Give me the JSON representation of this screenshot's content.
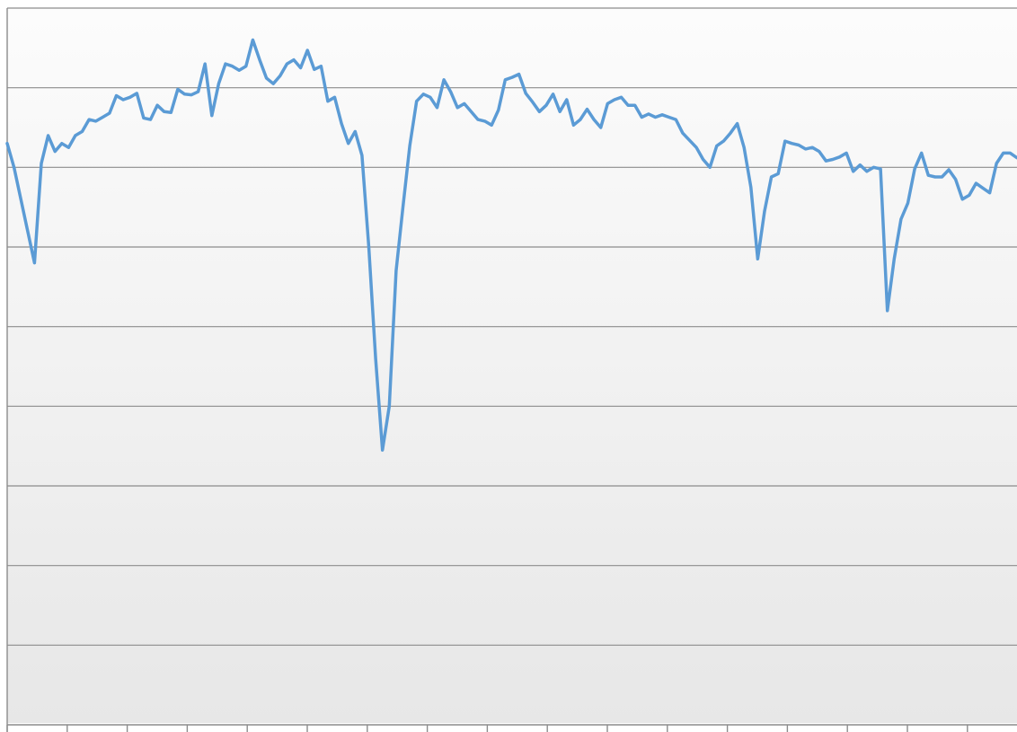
{
  "chart_data": {
    "type": "line",
    "title": "",
    "xlabel": "",
    "ylabel": "",
    "ylim": [
      0,
      9
    ],
    "grid": true,
    "series": [
      {
        "color": "#5b9bd5",
        "values": [
          7.3,
          7.0,
          6.6,
          6.2,
          5.8,
          7.05,
          7.4,
          7.2,
          7.3,
          7.25,
          7.4,
          7.45,
          7.6,
          7.58,
          7.63,
          7.68,
          7.9,
          7.85,
          7.88,
          7.93,
          7.62,
          7.6,
          7.78,
          7.7,
          7.69,
          7.98,
          7.92,
          7.91,
          7.95,
          8.3,
          7.65,
          8.05,
          8.3,
          8.27,
          8.22,
          8.27,
          8.6,
          8.35,
          8.12,
          8.05,
          8.15,
          8.3,
          8.35,
          8.25,
          8.47,
          8.23,
          8.27,
          7.83,
          7.88,
          7.55,
          7.3,
          7.45,
          7.15,
          6.0,
          4.6,
          3.45,
          4.0,
          5.7,
          6.5,
          7.27,
          7.83,
          7.92,
          7.88,
          7.75,
          8.1,
          7.95,
          7.75,
          7.8,
          7.7,
          7.6,
          7.58,
          7.53,
          7.72,
          8.1,
          8.13,
          8.17,
          7.93,
          7.82,
          7.7,
          7.78,
          7.92,
          7.7,
          7.85,
          7.53,
          7.6,
          7.73,
          7.6,
          7.5,
          7.8,
          7.85,
          7.88,
          7.78,
          7.78,
          7.63,
          7.67,
          7.63,
          7.66,
          7.63,
          7.6,
          7.43,
          7.34,
          7.25,
          7.1,
          7.0,
          7.27,
          7.33,
          7.43,
          7.55,
          7.25,
          6.75,
          5.85,
          6.45,
          6.88,
          6.92,
          7.33,
          7.3,
          7.28,
          7.23,
          7.25,
          7.2,
          7.08,
          7.1,
          7.13,
          7.18,
          6.95,
          7.03,
          6.95,
          7.0,
          6.98,
          5.2,
          5.85,
          6.35,
          6.55,
          6.98,
          7.18,
          6.9,
          6.88,
          6.88,
          6.97,
          6.85,
          6.6,
          6.65,
          6.8,
          6.74,
          6.68,
          7.05,
          7.18,
          7.18,
          7.12
        ]
      }
    ]
  }
}
